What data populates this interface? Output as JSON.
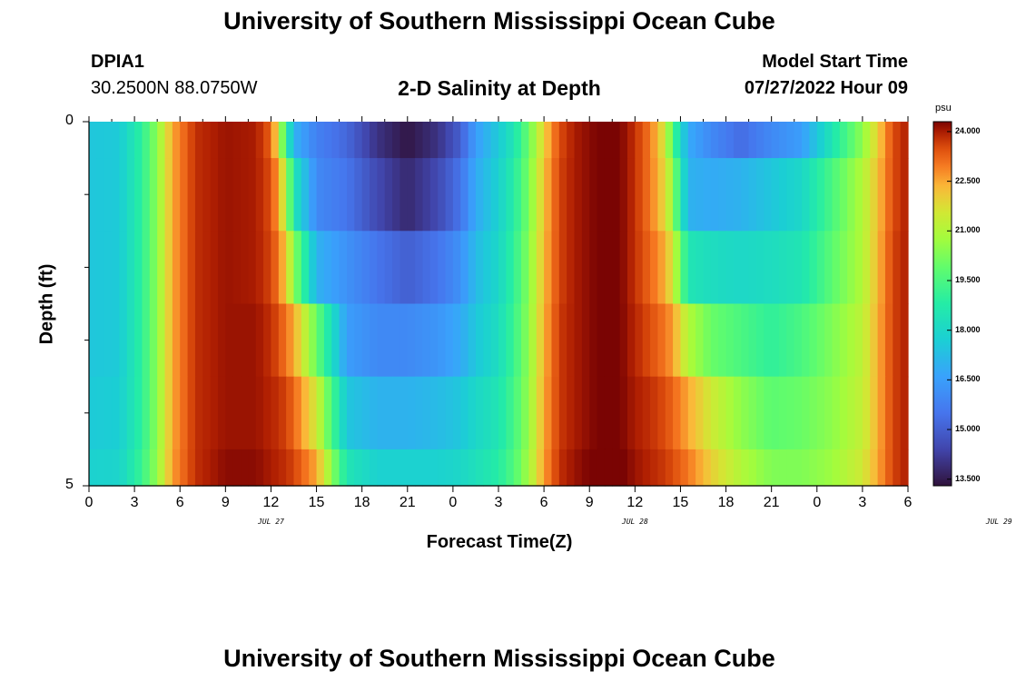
{
  "header": {
    "title": "University of Southern Mississippi Ocean Cube",
    "station_id": "DPIA1",
    "station_coords": "30.2500N  88.0750W",
    "subtitle": "2-D Salinity at Depth",
    "model_label": "Model Start Time",
    "model_time": "07/27/2022 Hour 09"
  },
  "footer": {
    "title": "University of Southern Mississippi Ocean Cube"
  },
  "chart_data": {
    "type": "heatmap",
    "title": "2-D Salinity at Depth",
    "xlabel": "Forecast Time(Z)",
    "ylabel": "Depth (ft)",
    "x_ticks": [
      "0",
      "3",
      "6",
      "9",
      "12",
      "15",
      "18",
      "21",
      "0",
      "3",
      "6",
      "9",
      "12",
      "15",
      "18",
      "21",
      "0",
      "3",
      "6"
    ],
    "date_labels": [
      {
        "text": "JUL 27",
        "hour": 12
      },
      {
        "text": "JUL 28",
        "hour": 36
      },
      {
        "text": "JUL 29",
        "hour": 60
      }
    ],
    "x_range_hours": [
      0,
      54
    ],
    "y_range": [
      0,
      5
    ],
    "y_tick_labels": [
      "0",
      "5"
    ],
    "y_minor_ticks": [
      1,
      2,
      3,
      4
    ],
    "depth_rows": [
      0.25,
      1,
      2,
      3,
      4,
      4.75
    ],
    "colorbar": {
      "unit": "psu",
      "range": [
        13.3,
        24.3
      ],
      "labels": [
        "24.000",
        "22.500",
        "21.000",
        "19.500",
        "18.000",
        "16.500",
        "15.000",
        "13.500"
      ]
    },
    "keyframes_hours": [
      0,
      2,
      3.5,
      4.5,
      5.5,
      7,
      9,
      11,
      12,
      12.5,
      13,
      13.5,
      15,
      17,
      19,
      21,
      23,
      24.5,
      25.5,
      27,
      28,
      29,
      30,
      31,
      32,
      33,
      34,
      35,
      36,
      37,
      38,
      38.5,
      39.5,
      41,
      43,
      45,
      47,
      49,
      51,
      52,
      53,
      54
    ],
    "salinity": [
      [
        17.5,
        17.6,
        19.0,
        20.5,
        22.5,
        23.8,
        24.1,
        24.0,
        23.3,
        21.5,
        19.0,
        17.0,
        15.8,
        15.2,
        14.0,
        13.4,
        14.0,
        15.0,
        16.5,
        17.6,
        18.5,
        20.0,
        22.0,
        23.5,
        24.0,
        24.2,
        24.4,
        24.3,
        23.8,
        23.0,
        21.5,
        19.5,
        16.8,
        16.0,
        15.3,
        16.0,
        16.5,
        18.5,
        20.5,
        22.0,
        23.5,
        24.0
      ],
      [
        17.5,
        17.6,
        19.0,
        20.5,
        22.5,
        23.8,
        24.1,
        24.0,
        23.5,
        22.5,
        21.0,
        18.5,
        16.0,
        15.5,
        14.5,
        13.8,
        14.5,
        15.5,
        16.8,
        17.8,
        18.8,
        20.2,
        22.2,
        23.6,
        24.0,
        24.2,
        24.4,
        24.3,
        23.8,
        23.0,
        21.8,
        20.5,
        17.0,
        16.8,
        17.0,
        17.5,
        18.0,
        19.5,
        21.0,
        22.2,
        23.5,
        24.0
      ],
      [
        17.5,
        17.6,
        19.0,
        20.5,
        22.5,
        23.8,
        24.1,
        24.0,
        23.6,
        23.0,
        22.0,
        20.5,
        17.0,
        16.2,
        15.5,
        15.0,
        15.5,
        16.2,
        17.2,
        18.0,
        19.0,
        20.4,
        22.3,
        23.6,
        24.0,
        24.2,
        24.4,
        24.3,
        23.8,
        23.2,
        22.4,
        21.5,
        18.5,
        18.2,
        18.0,
        18.2,
        18.5,
        19.8,
        21.0,
        22.3,
        23.6,
        24.0
      ],
      [
        17.5,
        17.6,
        19.0,
        20.5,
        22.5,
        23.8,
        24.1,
        24.1,
        23.8,
        23.5,
        23.0,
        22.5,
        20.0,
        16.5,
        16.0,
        16.0,
        16.3,
        16.8,
        17.5,
        18.2,
        19.2,
        20.5,
        22.4,
        23.7,
        24.0,
        24.2,
        24.4,
        24.3,
        23.9,
        23.5,
        23.0,
        22.6,
        21.0,
        20.0,
        19.5,
        19.0,
        19.5,
        20.3,
        21.2,
        22.4,
        23.6,
        24.0
      ],
      [
        17.6,
        17.7,
        19.0,
        20.5,
        22.5,
        23.8,
        24.1,
        24.1,
        23.9,
        23.8,
        23.6,
        23.2,
        21.5,
        17.5,
        17.0,
        17.0,
        17.2,
        17.5,
        18.0,
        18.5,
        19.4,
        20.6,
        22.5,
        23.7,
        24.0,
        24.2,
        24.4,
        24.3,
        24.0,
        23.8,
        23.5,
        23.2,
        22.5,
        21.5,
        20.5,
        19.8,
        20.0,
        20.5,
        21.3,
        22.4,
        23.6,
        24.0
      ],
      [
        17.8,
        17.9,
        19.2,
        20.6,
        22.6,
        23.8,
        24.2,
        24.2,
        24.0,
        23.9,
        23.8,
        23.6,
        22.5,
        18.5,
        17.8,
        17.8,
        17.8,
        18.0,
        18.3,
        18.8,
        19.6,
        20.8,
        22.6,
        23.8,
        24.1,
        24.3,
        24.5,
        24.4,
        24.1,
        23.9,
        23.7,
        23.5,
        23.0,
        22.0,
        21.0,
        20.3,
        20.3,
        20.7,
        21.5,
        22.5,
        23.6,
        24.0
      ]
    ]
  }
}
